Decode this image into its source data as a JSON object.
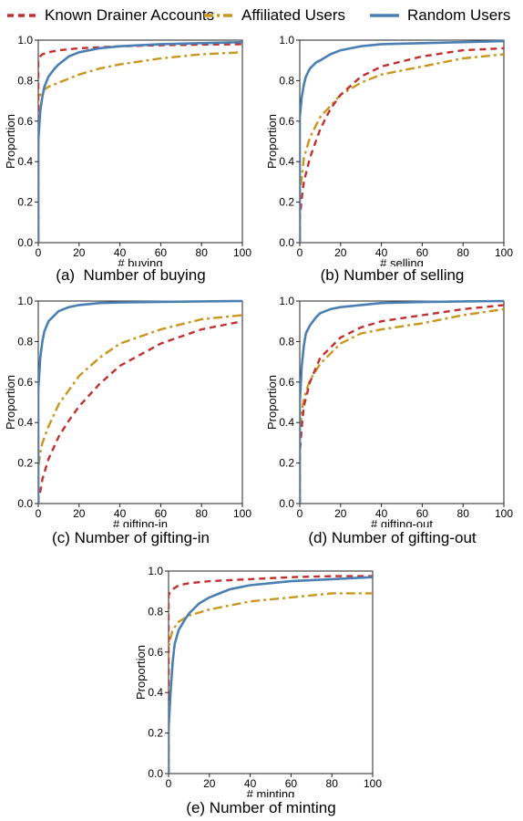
{
  "legend": {
    "items": [
      {
        "label": "Known Drainer Accounts",
        "color": "#c0302f",
        "dash": "dashed"
      },
      {
        "label": "Affiliated Users",
        "color": "#c9961e",
        "dash": "dashdot"
      },
      {
        "label": "Random Users",
        "color": "#4a7fb3",
        "dash": "solid"
      }
    ]
  },
  "chart_data": [
    {
      "type": "line",
      "caption": "(a)  Number of buying",
      "xlabel": "# buying",
      "ylabel": "Proportion",
      "xlim": [
        0,
        100
      ],
      "ylim": [
        0,
        1.0
      ],
      "xticks": [
        "0",
        "20",
        "40",
        "60",
        "80",
        "100"
      ],
      "yticks": [
        "0.0",
        "0.2",
        "0.4",
        "0.6",
        "0.8",
        "1.0"
      ],
      "grid": false,
      "series": [
        {
          "name": "Known Drainer Accounts",
          "x": [
            0,
            1,
            2,
            5,
            10,
            20,
            40,
            60,
            80,
            100
          ],
          "y": [
            0.9,
            0.92,
            0.93,
            0.94,
            0.95,
            0.96,
            0.97,
            0.975,
            0.978,
            0.98
          ]
        },
        {
          "name": "Affiliated Users",
          "x": [
            0,
            1,
            2,
            5,
            10,
            20,
            30,
            40,
            60,
            80,
            100
          ],
          "y": [
            0.7,
            0.73,
            0.75,
            0.77,
            0.79,
            0.83,
            0.86,
            0.88,
            0.91,
            0.93,
            0.94
          ]
        },
        {
          "name": "Random Users",
          "x": [
            0,
            1,
            2,
            3,
            5,
            8,
            10,
            15,
            20,
            30,
            40,
            60,
            80,
            100
          ],
          "y": [
            0.5,
            0.65,
            0.72,
            0.77,
            0.82,
            0.86,
            0.88,
            0.92,
            0.94,
            0.96,
            0.97,
            0.98,
            0.985,
            0.99
          ]
        }
      ]
    },
    {
      "type": "line",
      "caption": "(b) Number of selling",
      "xlabel": "# selling",
      "ylabel": "Proportion",
      "xlim": [
        0,
        100
      ],
      "ylim": [
        0,
        1.0
      ],
      "xticks": [
        "0",
        "20",
        "40",
        "60",
        "80",
        "100"
      ],
      "yticks": [
        "0.0",
        "0.2",
        "0.4",
        "0.6",
        "0.8",
        "1.0"
      ],
      "grid": false,
      "series": [
        {
          "name": "Known Drainer Accounts",
          "x": [
            0,
            1,
            2,
            5,
            10,
            15,
            20,
            30,
            40,
            60,
            80,
            100
          ],
          "y": [
            0.12,
            0.22,
            0.3,
            0.42,
            0.56,
            0.66,
            0.73,
            0.82,
            0.87,
            0.92,
            0.95,
            0.96
          ]
        },
        {
          "name": "Affiliated Users",
          "x": [
            0,
            1,
            2,
            5,
            10,
            20,
            30,
            40,
            60,
            80,
            100
          ],
          "y": [
            0.25,
            0.32,
            0.42,
            0.52,
            0.62,
            0.73,
            0.79,
            0.83,
            0.87,
            0.91,
            0.93
          ]
        },
        {
          "name": "Random Users",
          "x": [
            0,
            1,
            2,
            3,
            5,
            8,
            10,
            15,
            20,
            30,
            40,
            60,
            80,
            100
          ],
          "y": [
            0.62,
            0.72,
            0.78,
            0.82,
            0.86,
            0.89,
            0.9,
            0.93,
            0.95,
            0.97,
            0.98,
            0.985,
            0.99,
            0.995
          ]
        }
      ]
    },
    {
      "type": "line",
      "caption": "(c) Number of gifting-in",
      "xlabel": "# gifting-in",
      "ylabel": "Proportion",
      "xlim": [
        0,
        100
      ],
      "ylim": [
        0,
        1.0
      ],
      "xticks": [
        "0",
        "20",
        "40",
        "60",
        "80",
        "100"
      ],
      "yticks": [
        "0.0",
        "0.2",
        "0.4",
        "0.6",
        "0.8",
        "1.0"
      ],
      "grid": false,
      "series": [
        {
          "name": "Known Drainer Accounts",
          "x": [
            0,
            1,
            2,
            5,
            10,
            15,
            20,
            30,
            40,
            60,
            80,
            100
          ],
          "y": [
            0.02,
            0.06,
            0.12,
            0.22,
            0.33,
            0.41,
            0.48,
            0.59,
            0.68,
            0.79,
            0.86,
            0.9
          ]
        },
        {
          "name": "Affiliated Users",
          "x": [
            0,
            1,
            2,
            5,
            10,
            20,
            30,
            40,
            60,
            80,
            100
          ],
          "y": [
            0.18,
            0.25,
            0.3,
            0.38,
            0.49,
            0.63,
            0.72,
            0.79,
            0.86,
            0.91,
            0.93
          ]
        },
        {
          "name": "Random Users",
          "x": [
            0,
            1,
            2,
            3,
            5,
            8,
            10,
            15,
            20,
            30,
            40,
            60,
            80,
            100
          ],
          "y": [
            0.56,
            0.72,
            0.8,
            0.85,
            0.9,
            0.93,
            0.95,
            0.97,
            0.98,
            0.99,
            0.993,
            0.996,
            0.998,
            1.0
          ]
        }
      ]
    },
    {
      "type": "line",
      "caption": "(d) Number of gifting-out",
      "xlabel": "# gifting-out",
      "ylabel": "Proportion",
      "xlim": [
        0,
        100
      ],
      "ylim": [
        0,
        1.0
      ],
      "xticks": [
        "0",
        "20",
        "40",
        "60",
        "80",
        "100"
      ],
      "yticks": [
        "0.0",
        "0.2",
        "0.4",
        "0.6",
        "0.8",
        "1.0"
      ],
      "grid": false,
      "series": [
        {
          "name": "Known Drainer Accounts",
          "x": [
            0,
            1,
            2,
            5,
            10,
            20,
            30,
            40,
            60,
            80,
            100
          ],
          "y": [
            0.25,
            0.38,
            0.48,
            0.6,
            0.72,
            0.82,
            0.87,
            0.9,
            0.93,
            0.96,
            0.98
          ]
        },
        {
          "name": "Affiliated Users",
          "x": [
            0,
            1,
            2,
            5,
            10,
            20,
            30,
            40,
            60,
            80,
            100
          ],
          "y": [
            0.35,
            0.45,
            0.52,
            0.61,
            0.69,
            0.79,
            0.84,
            0.86,
            0.89,
            0.93,
            0.96
          ]
        },
        {
          "name": "Random Users",
          "x": [
            0,
            1,
            2,
            3,
            5,
            8,
            10,
            15,
            20,
            30,
            40,
            60,
            80,
            100
          ],
          "y": [
            0.5,
            0.68,
            0.78,
            0.84,
            0.88,
            0.92,
            0.94,
            0.96,
            0.97,
            0.98,
            0.99,
            0.995,
            0.998,
            1.0
          ]
        }
      ]
    },
    {
      "type": "line",
      "caption": "(e) Number of minting",
      "xlabel": "# minting",
      "ylabel": "Proportion",
      "xlim": [
        0,
        100
      ],
      "ylim": [
        0,
        1.0
      ],
      "xticks": [
        "0",
        "20",
        "40",
        "60",
        "80",
        "100"
      ],
      "yticks": [
        "0.0",
        "0.2",
        "0.4",
        "0.6",
        "0.8",
        "1.0"
      ],
      "grid": false,
      "series": [
        {
          "name": "Known Drainer Accounts",
          "x": [
            0,
            1,
            2,
            5,
            10,
            20,
            40,
            60,
            80,
            100
          ],
          "y": [
            0.88,
            0.9,
            0.91,
            0.93,
            0.94,
            0.95,
            0.96,
            0.97,
            0.975,
            0.975
          ]
        },
        {
          "name": "Affiliated Users",
          "x": [
            0,
            1,
            2,
            5,
            10,
            20,
            30,
            40,
            60,
            80,
            100
          ],
          "y": [
            0.62,
            0.67,
            0.71,
            0.75,
            0.78,
            0.81,
            0.83,
            0.85,
            0.87,
            0.89,
            0.89
          ]
        },
        {
          "name": "Random Users",
          "x": [
            0,
            1,
            2,
            3,
            5,
            8,
            10,
            15,
            20,
            30,
            40,
            60,
            80,
            100
          ],
          "y": [
            0.22,
            0.4,
            0.55,
            0.64,
            0.71,
            0.76,
            0.79,
            0.84,
            0.87,
            0.91,
            0.93,
            0.95,
            0.96,
            0.97
          ]
        }
      ]
    }
  ]
}
